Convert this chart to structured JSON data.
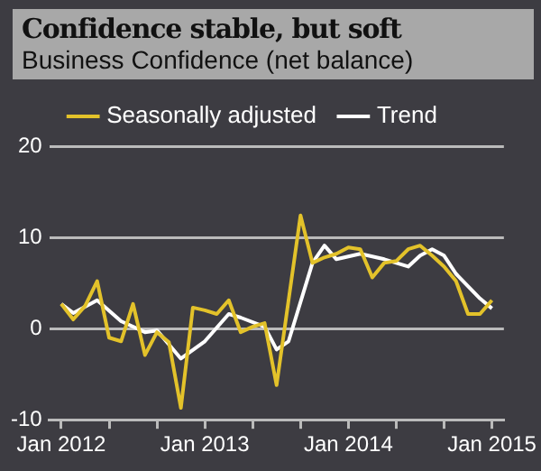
{
  "chart_data": {
    "type": "line",
    "title": "Confidence stable, but soft",
    "subtitle": "Business Confidence (net balance)",
    "series": [
      {
        "name": "Seasonally adjusted",
        "color": "#e3c22a",
        "x": [
          "2012-01",
          "2012-02",
          "2012-03",
          "2012-04",
          "2012-05",
          "2012-06",
          "2012-07",
          "2012-08",
          "2012-09",
          "2012-10",
          "2012-11",
          "2012-12",
          "2013-01",
          "2013-02",
          "2013-03",
          "2013-04",
          "2013-05",
          "2013-06",
          "2013-07",
          "2013-09",
          "2013-10",
          "2013-11",
          "2013-12",
          "2014-01",
          "2014-02",
          "2014-03",
          "2014-04",
          "2014-05",
          "2014-06",
          "2014-07",
          "2014-08",
          "2014-09",
          "2014-10",
          "2014-11",
          "2014-12",
          "2015-01"
        ],
        "values": [
          2.7,
          1.0,
          2.5,
          5.2,
          -1.0,
          -1.4,
          2.7,
          -2.9,
          -0.4,
          -1.5,
          -8.7,
          2.3,
          2.0,
          1.6,
          3.1,
          -0.4,
          0.2,
          0.6,
          -6.2,
          12.4,
          7.2,
          7.8,
          8.2,
          8.9,
          8.7,
          5.6,
          7.2,
          7.4,
          8.7,
          9.1,
          8.0,
          6.8,
          5.2,
          1.6,
          1.6,
          3.1
        ]
      },
      {
        "name": "Trend",
        "color": "#ffffff",
        "x": [
          "2012-01",
          "2012-02",
          "2012-04",
          "2012-06",
          "2012-08",
          "2012-09",
          "2012-11",
          "2013-01",
          "2013-03",
          "2013-04",
          "2013-06",
          "2013-07",
          "2013-08",
          "2013-10",
          "2013-11",
          "2013-12",
          "2014-02",
          "2014-04",
          "2014-06",
          "2014-07",
          "2014-08",
          "2014-09",
          "2014-10",
          "2014-12",
          "2015-01"
        ],
        "values": [
          2.7,
          1.7,
          3.1,
          0.8,
          -0.4,
          -0.2,
          -3.3,
          -1.4,
          1.6,
          1.2,
          0.2,
          -2.3,
          -1.4,
          7.2,
          9.1,
          7.6,
          8.2,
          7.6,
          6.8,
          8.0,
          8.7,
          8.0,
          6.0,
          3.3,
          2.2
        ]
      }
    ],
    "xlim": [
      "2011-12",
      "2015-02"
    ],
    "xticks": [
      {
        "value": "2012-01",
        "label": "Jan 2012"
      },
      {
        "value": "2012-05",
        "label": null
      },
      {
        "value": "2012-09",
        "label": null
      },
      {
        "value": "2013-01",
        "label": "Jan 2013"
      },
      {
        "value": "2013-05",
        "label": null
      },
      {
        "value": "2013-09",
        "label": null
      },
      {
        "value": "2014-01",
        "label": "Jan 2014"
      },
      {
        "value": "2014-05",
        "label": null
      },
      {
        "value": "2014-09",
        "label": null
      },
      {
        "value": "2015-01",
        "label": "Jan 2015"
      }
    ],
    "ylim": [
      -10,
      20
    ],
    "yticks": [
      -10,
      0,
      10,
      20
    ],
    "grid": "y",
    "legend": "top",
    "line_style": "solid"
  }
}
